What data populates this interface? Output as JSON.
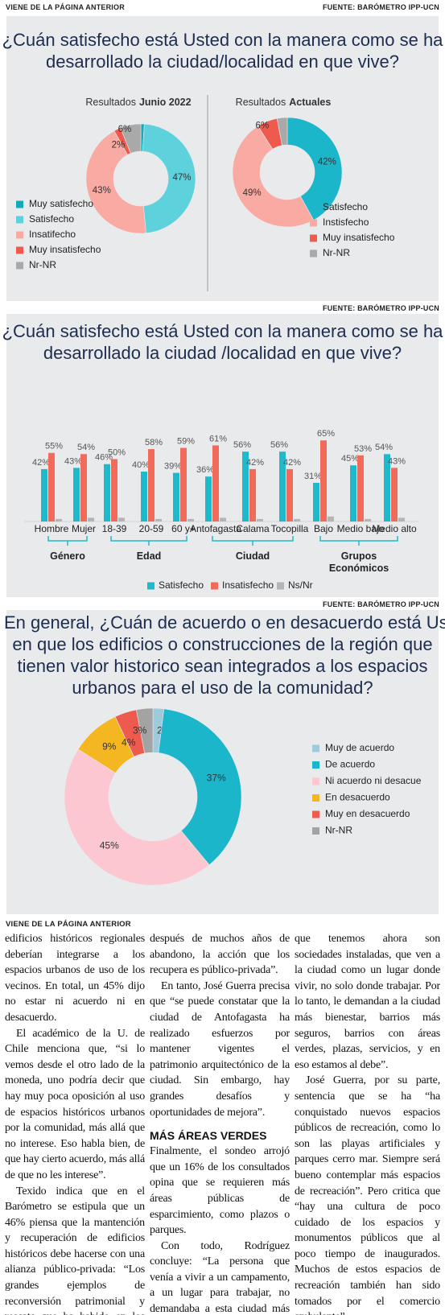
{
  "header": {
    "kicker": "VIENE DE LA PÁGINA ANTERIOR"
  },
  "sources": [
    "FUENTE: BARÓMETRO IPP-UCN",
    "FUENTE: BARÓMETRO IPP-UCN",
    "FUENTE: BARÓMETRO IPP-UCN"
  ],
  "chart_data": [
    {
      "type": "pie",
      "title": [
        "¿Cuán satisfecho está Usted con la manera como se ha",
        "desarrollado la ciudad/localidad en que vive?"
      ],
      "subtitle": "Resultados",
      "subtitle_bold": "Junio 2022",
      "categories": [
        "Muy satisfecho",
        "Satisfecho",
        "Insatifecho",
        "Muy insatisfecho",
        "Nr-NR"
      ],
      "values": [
        1,
        47,
        43,
        2,
        6
      ],
      "value_labels": [
        "1%",
        "47%",
        "43%",
        "2%",
        "6%"
      ],
      "colors": [
        "#12a9b8",
        "#5ed2dc",
        "#f9aaa2",
        "#ee5a4e",
        "#a9a9a9"
      ],
      "donut": true
    },
    {
      "type": "pie",
      "subtitle": "Resultados",
      "subtitle_bold": "Actuales",
      "categories": [
        "Satisfecho",
        "Instisfecho",
        "Muy insatisfecho",
        "Nr-NR"
      ],
      "values": [
        42,
        49,
        6,
        3
      ],
      "value_labels": [
        "42%",
        "49%",
        "6%",
        null
      ],
      "colors": [
        "#1cb6ca",
        "#f9aaa2",
        "#ee5a4e",
        "#a9a9a9"
      ],
      "donut": true
    },
    {
      "type": "bar",
      "title": [
        "¿Cuán satisfecho está Usted con la manera como se ha",
        "desarrollado la ciudad /localidad en que vive?"
      ],
      "categories": [
        "Hombre",
        "Mujer",
        "18-39",
        "20-59",
        "60 y+",
        "Antofagasta",
        "Calama",
        "Tocopilla",
        "Bajo",
        "Medio bajo",
        "Medio alto"
      ],
      "group_labels": [
        "Género",
        "Edad",
        "Ciudad",
        "Grupos Económicos"
      ],
      "series": [
        {
          "name": "Satisfecho",
          "color": "#1fb9cc",
          "values": [
            42,
            43,
            46,
            40,
            39,
            36,
            56,
            56,
            31,
            45,
            54
          ],
          "value_labels": [
            "42%",
            "43%",
            "46%",
            "40%",
            "39%",
            "36%",
            "56%",
            "56%",
            "31%",
            "45%",
            "54%"
          ]
        },
        {
          "name": "Insatisfecho",
          "color": "#f26a59",
          "values": [
            55,
            54,
            50,
            58,
            59,
            61,
            42,
            42,
            65,
            53,
            43
          ],
          "value_labels": [
            "55%",
            "54%",
            "50%",
            "58%",
            "59%",
            "61%",
            "42%",
            "42%",
            "65%",
            "53%",
            "43%"
          ]
        },
        {
          "name": "Ns/Nr",
          "color": "#b5b5b5",
          "values": [
            2,
            3,
            3,
            2,
            2,
            3,
            2,
            2,
            4,
            2,
            3
          ]
        }
      ]
    },
    {
      "type": "pie",
      "title": [
        "En general, ¿Cuán de acuerdo o en desacuerdo está Uste",
        "en que los edificios o construcciones de la región que",
        "tienen valor historico sean integrados a los espacios",
        "urbanos para el uso de la comunidad?"
      ],
      "categories": [
        "Muy de acuerdo",
        "De acuerdo",
        "Ni acuerdo ni desacue",
        "En desacuerdo",
        "Muy en desacuerdo",
        "Nr-NR"
      ],
      "values": [
        2,
        37,
        45,
        9,
        4,
        3
      ],
      "value_labels": [
        "2%",
        "37%",
        "45%",
        "9%",
        "4%",
        "3%"
      ],
      "colors": [
        "#9fcadb",
        "#1cb6ca",
        "#fcc7d1",
        "#f4b722",
        "#ee5a4e",
        "#a3a3a3"
      ],
      "donut": true
    }
  ],
  "article": {
    "kicker": "VIENE DE LA PÁGINA ANTERIOR",
    "columns": [
      {
        "paragraphs": [
          "edificios históricos regionales deberían integrarse a los espacios urbanos de uso de los vecinos. En total, un 45% dijo no estar ni acuerdo ni en desacuerdo.",
          "El académico de la U. de Chile menciona que, “si lo vemos desde el otro lado de la moneda, uno podría decir que hay muy poca oposición al uso de espacios históricos urbanos por la comunidad, más allá que no interese. Eso habla bien, de que hay cierto acuerdo, más allá de que no les interese”.",
          "Texido indica que en el Barómetro se estipula que un 46% piensa que la mantención y recuperación de edificios históricos debe hacerse con una alianza público-privada: “Los grandes ejemplos de reconversión patrimonial y rescate que ha habido en los últimos años,"
        ]
      },
      {
        "paragraphs": [
          "después de muchos años de abandono, la acción que los recupera es público-privada”.",
          "En tanto, José Guerra precisa que “se puede constatar que la ciudad de Antofagasta ha realizado esfuerzos por mantener vigentes el patrimonio arquitectónico de la ciudad. Sin embargo, hay grandes desafíos y oportunidades de mejora”."
        ],
        "heading": "MÁS ÁREAS VERDES",
        "paragraphs_after": [
          "Finalmente, el sondeo arrojó que un 16% de los consultados opina que se requieren más áreas públicas de esparcimiento, como plazos o parques.",
          "Con todo, Rodríguez concluye: “La persona que venía a vivir a un campamento, a un lugar para trabajar, no demandaba a esta ciudad más cosas, demandaba cosas mínimas. Lo"
        ]
      },
      {
        "paragraphs": [
          "que tenemos ahora son sociedades instaladas, que ven a la ciudad como un lugar donde vivir, no solo donde trabajar. Por lo tanto, le demandan a la ciudad más bienestar, barrios más seguros, barrios con áreas verdes, plazas, servicios, y en eso estamos al debe”.",
          "José Guerra, por su parte, sentencia que se ha “ha conquistado nuevos espacios públicos de recreación, como lo son las playas artificiales y parques cerro mar. Siempre será bueno contemplar más espacios de recreación”. Pero critica que “hay una cultura de poco cuidado de los espacios y monumentos públicos que al poco tiempo de inaugurados. Muchos de estos espacios de recreación también han sido tomados por el comercio ambulante”."
        ]
      }
    ]
  }
}
